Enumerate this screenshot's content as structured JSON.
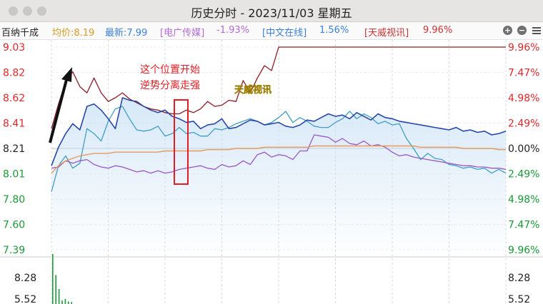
{
  "window": {
    "title": "历史分时 - 2023/11/03 星期五"
  },
  "info": {
    "stock_name": "百纳千成",
    "avg_label": "均价:8.19",
    "latest_label": "最新:7.99",
    "sector1_name": "[电广传媒]",
    "sector1_change": "-1.93%",
    "sector2_name": "[中文在线]",
    "sector2_change": "1.56%",
    "sector3_name": "[天威视讯]",
    "sector3_change": "9.96%"
  },
  "controls": {
    "zoom_in_icon": "plus-circle-icon",
    "zoom_out_icon": "minus-circle-icon",
    "menu_icon": "hamburger-menu-icon"
  },
  "annotations": {
    "line1": "这个位置开始",
    "line2": "逆势分离走强",
    "peer_label": "天威视讯"
  },
  "colors": {
    "up": "#e0282a",
    "down": "#1a9a37",
    "price_line": "#2748a8",
    "avg_line": "#e79a5a",
    "tianwei": "#8c1c24",
    "zhongwen": "#3f9ec5",
    "dianguang": "#9a57c8",
    "annotation": "#e31c23",
    "peer_label": "#f7e23a"
  },
  "chart_data": {
    "type": "line",
    "title": "",
    "y_axis_left": [
      "9.03",
      "8.82",
      "8.62",
      "8.41",
      "8.21",
      "8.01",
      "7.80",
      "7.60",
      "7.39"
    ],
    "y_axis_right": [
      "9.96%",
      "7.47%",
      "4.98%",
      "2.49%",
      "0.00%",
      "2.49%",
      "4.98%",
      "7.47%",
      "9.96%"
    ],
    "ylim": [
      7.39,
      9.03
    ],
    "prev_close": 8.21,
    "volume_axis_left": [
      "8.28",
      "5.52"
    ],
    "volume_axis_right": [
      "8.28",
      "5.52"
    ],
    "x_points": 241,
    "series": [
      {
        "name": "百纳千成",
        "color_key": "price_line",
        "values": [
          8.07,
          8.22,
          8.33,
          8.41,
          8.36,
          8.55,
          8.57,
          8.52,
          8.45,
          8.37,
          8.62,
          8.6,
          8.59,
          8.55,
          8.52,
          8.5,
          8.52,
          8.47,
          8.45,
          8.42,
          8.43,
          8.37,
          8.4,
          8.41,
          8.45,
          8.37,
          8.38,
          8.41,
          8.44,
          8.43,
          8.4,
          8.41,
          8.42,
          8.39,
          8.38,
          8.4,
          8.44,
          8.43,
          8.46,
          8.49,
          8.47,
          8.48,
          8.45,
          8.5,
          8.47,
          8.44,
          8.49,
          8.46,
          8.45,
          8.43,
          8.42,
          8.41,
          8.4,
          8.39,
          8.38,
          8.37,
          8.36,
          8.38,
          8.35,
          8.36,
          8.34,
          8.35,
          8.32,
          8.33,
          8.35
        ]
      },
      {
        "name": "均价",
        "color_key": "avg_line",
        "values": [
          8.01,
          8.07,
          8.11,
          8.13,
          8.15,
          8.16,
          8.17,
          8.17,
          8.17,
          8.18,
          8.18,
          8.18,
          8.18,
          8.18,
          8.18,
          8.18,
          8.19,
          8.19,
          8.19,
          8.19,
          8.19,
          8.19,
          8.2,
          8.2,
          8.2,
          8.2,
          8.21,
          8.21,
          8.21,
          8.21,
          8.22,
          8.22,
          8.22,
          8.22,
          8.22,
          8.22,
          8.22,
          8.23,
          8.23,
          8.23,
          8.23,
          8.23,
          8.23,
          8.23,
          8.23,
          8.23,
          8.23,
          8.23,
          8.23,
          8.23,
          8.23,
          8.23,
          8.22,
          8.22,
          8.22,
          8.22,
          8.22,
          8.22,
          8.21,
          8.21,
          8.21,
          8.21,
          8.21,
          8.2,
          8.2
        ]
      },
      {
        "name": "[天威视讯]",
        "color_key": "tianwei",
        "values": [
          8.37,
          8.57,
          8.75,
          8.83,
          8.71,
          8.66,
          8.78,
          8.66,
          8.59,
          8.62,
          8.66,
          8.61,
          8.58,
          8.55,
          8.53,
          8.52,
          8.5,
          8.49,
          8.49,
          8.52,
          8.5,
          8.53,
          8.59,
          8.55,
          8.56,
          8.6,
          8.59,
          8.76,
          8.66,
          8.78,
          8.88,
          8.84,
          9.03,
          9.03,
          9.03,
          9.03,
          9.03,
          9.03,
          9.03,
          9.03,
          9.03,
          9.03,
          9.03,
          9.03,
          9.03,
          9.03,
          9.03,
          9.03,
          9.03,
          9.03,
          9.03,
          9.03,
          9.03,
          9.03,
          9.03,
          9.03,
          9.03,
          9.03,
          9.03,
          9.03,
          9.03,
          9.03,
          9.03,
          9.03,
          9.03
        ]
      },
      {
        "name": "[中文在线]",
        "color_key": "zhongwen",
        "values": [
          7.86,
          8.07,
          8.15,
          8.05,
          8.09,
          8.37,
          8.33,
          8.27,
          8.43,
          8.53,
          8.55,
          8.45,
          8.36,
          8.35,
          8.36,
          8.39,
          8.31,
          8.33,
          8.38,
          8.33,
          8.34,
          8.31,
          8.31,
          8.37,
          8.36,
          8.38,
          8.41,
          8.43,
          8.45,
          8.43,
          8.4,
          8.42,
          8.46,
          8.51,
          8.42,
          8.46,
          8.43,
          8.39,
          8.38,
          8.38,
          8.42,
          8.45,
          8.51,
          8.45,
          8.49,
          8.46,
          8.41,
          8.43,
          8.4,
          8.41,
          8.29,
          8.21,
          8.12,
          8.17,
          8.13,
          8.12,
          8.08,
          8.07,
          8.05,
          8.06,
          8.04,
          8.05,
          8.01,
          8.04,
          8.01
        ]
      },
      {
        "name": "[电广传媒]",
        "color_key": "dianguang",
        "values": [
          8.05,
          8.06,
          8.11,
          8.09,
          8.11,
          8.12,
          8.08,
          8.06,
          8.05,
          8.07,
          8.06,
          8.04,
          8.02,
          8.03,
          8.01,
          8.03,
          8.01,
          8.02,
          8.04,
          8.05,
          8.06,
          8.07,
          8.05,
          8.04,
          8.08,
          8.06,
          8.07,
          8.11,
          8.08,
          8.16,
          8.18,
          8.14,
          8.16,
          8.15,
          8.12,
          8.19,
          8.19,
          8.32,
          8.31,
          8.3,
          8.26,
          8.29,
          8.25,
          8.24,
          8.27,
          8.23,
          8.24,
          8.22,
          8.18,
          8.15,
          8.16,
          8.14,
          8.13,
          8.12,
          8.11,
          8.1,
          8.09,
          8.08,
          8.07,
          8.07,
          8.06,
          8.06,
          8.05,
          8.05,
          8.04
        ]
      }
    ],
    "volume": {
      "values": [
        100,
        58,
        30,
        7,
        10,
        5,
        4
      ]
    }
  }
}
